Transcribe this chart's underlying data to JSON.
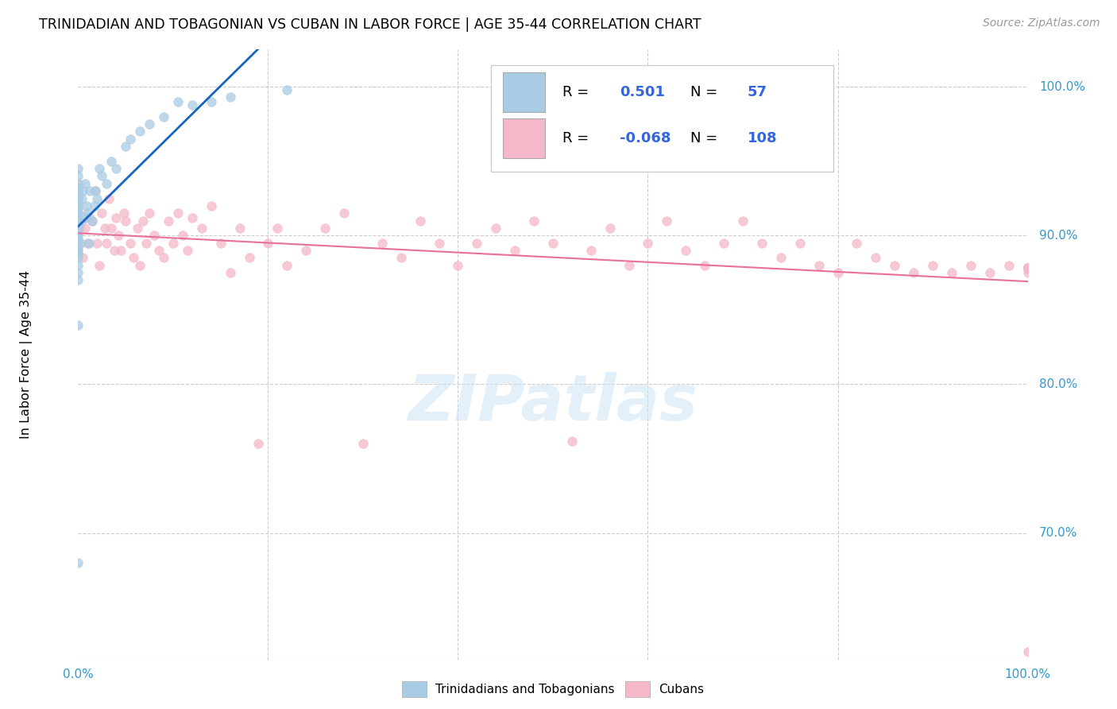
{
  "title": "TRINIDADIAN AND TOBAGONIAN VS CUBAN IN LABOR FORCE | AGE 35-44 CORRELATION CHART",
  "source_text": "Source: ZipAtlas.com",
  "ylabel": "In Labor Force | Age 35-44",
  "ytick_vals": [
    0.7,
    0.8,
    0.9,
    1.0
  ],
  "ytick_labels": [
    "70.0%",
    "80.0%",
    "90.0%",
    "100.0%"
  ],
  "xlim": [
    0.0,
    1.0
  ],
  "ylim": [
    0.615,
    1.025
  ],
  "watermark_text": "ZIPatlas",
  "color_blue": "#a8cce4",
  "color_pink": "#f4b8c8",
  "color_line_blue": "#1565c0",
  "color_line_pink": "#e8709a",
  "legend_label1": "R =   0.501   N =    57",
  "legend_label2": "R = -0.068   N = 108",
  "bottom_label1": "Trinidadians and Tobagonians",
  "bottom_label2": "Cubans",
  "trin_x": [
    0.0,
    0.0,
    0.0,
    0.0,
    0.0,
    0.0,
    0.0,
    0.0,
    0.0,
    0.0,
    0.0,
    0.0,
    0.0,
    0.0,
    0.0,
    0.0,
    0.0,
    0.0,
    0.0,
    0.0,
    0.0,
    0.0,
    0.0,
    0.0,
    0.0,
    0.0,
    0.0,
    0.0,
    0.002,
    0.003,
    0.004,
    0.005,
    0.007,
    0.008,
    0.009,
    0.01,
    0.011,
    0.012,
    0.015,
    0.017,
    0.018,
    0.02,
    0.022,
    0.025,
    0.03,
    0.035,
    0.04,
    0.05,
    0.055,
    0.065,
    0.075,
    0.09,
    0.105,
    0.12,
    0.14,
    0.16,
    0.22
  ],
  "trin_y": [
    0.68,
    0.84,
    0.87,
    0.875,
    0.88,
    0.885,
    0.888,
    0.89,
    0.892,
    0.895,
    0.898,
    0.9,
    0.902,
    0.905,
    0.908,
    0.91,
    0.912,
    0.915,
    0.918,
    0.92,
    0.922,
    0.925,
    0.928,
    0.93,
    0.932,
    0.935,
    0.94,
    0.945,
    0.895,
    0.91,
    0.925,
    0.93,
    0.935,
    0.912,
    0.92,
    0.915,
    0.895,
    0.93,
    0.91,
    0.92,
    0.93,
    0.925,
    0.945,
    0.94,
    0.935,
    0.95,
    0.945,
    0.96,
    0.965,
    0.97,
    0.975,
    0.98,
    0.99,
    0.988,
    0.99,
    0.993,
    0.998
  ],
  "cuban_x": [
    0.0,
    0.0,
    0.0,
    0.0,
    0.0,
    0.002,
    0.005,
    0.007,
    0.01,
    0.012,
    0.015,
    0.018,
    0.02,
    0.022,
    0.025,
    0.028,
    0.03,
    0.032,
    0.035,
    0.038,
    0.04,
    0.042,
    0.045,
    0.048,
    0.05,
    0.055,
    0.058,
    0.062,
    0.065,
    0.068,
    0.072,
    0.075,
    0.08,
    0.085,
    0.09,
    0.095,
    0.1,
    0.105,
    0.11,
    0.115,
    0.12,
    0.13,
    0.14,
    0.15,
    0.16,
    0.17,
    0.18,
    0.19,
    0.2,
    0.21,
    0.22,
    0.24,
    0.26,
    0.28,
    0.3,
    0.32,
    0.34,
    0.36,
    0.38,
    0.4,
    0.42,
    0.44,
    0.46,
    0.48,
    0.5,
    0.52,
    0.54,
    0.56,
    0.58,
    0.6,
    0.62,
    0.64,
    0.66,
    0.68,
    0.7,
    0.72,
    0.74,
    0.76,
    0.78,
    0.8,
    0.82,
    0.84,
    0.86,
    0.88,
    0.9,
    0.92,
    0.94,
    0.96,
    0.98,
    1.0,
    1.0,
    1.0,
    1.0,
    1.0,
    1.0,
    1.0,
    1.0,
    1.0,
    1.0,
    1.0,
    1.0,
    1.0,
    1.0,
    1.0,
    1.0,
    1.0,
    1.0,
    1.0
  ],
  "cuban_y": [
    0.91,
    0.925,
    0.89,
    0.915,
    0.935,
    0.905,
    0.885,
    0.905,
    0.895,
    0.912,
    0.91,
    0.93,
    0.895,
    0.88,
    0.915,
    0.905,
    0.895,
    0.925,
    0.905,
    0.89,
    0.912,
    0.9,
    0.89,
    0.915,
    0.91,
    0.895,
    0.885,
    0.905,
    0.88,
    0.91,
    0.895,
    0.915,
    0.9,
    0.89,
    0.885,
    0.91,
    0.895,
    0.915,
    0.9,
    0.89,
    0.912,
    0.905,
    0.92,
    0.895,
    0.875,
    0.905,
    0.885,
    0.76,
    0.895,
    0.905,
    0.88,
    0.89,
    0.905,
    0.915,
    0.76,
    0.895,
    0.885,
    0.91,
    0.895,
    0.88,
    0.895,
    0.905,
    0.89,
    0.91,
    0.895,
    0.762,
    0.89,
    0.905,
    0.88,
    0.895,
    0.91,
    0.89,
    0.88,
    0.895,
    0.91,
    0.895,
    0.885,
    0.895,
    0.88,
    0.875,
    0.895,
    0.885,
    0.88,
    0.875,
    0.88,
    0.875,
    0.88,
    0.875,
    0.88,
    0.875,
    0.878,
    0.878,
    0.878,
    0.878,
    0.878,
    0.878,
    0.878,
    0.878,
    0.878,
    0.878,
    0.878,
    0.878,
    0.878,
    0.878,
    0.878,
    0.878,
    0.878,
    0.62
  ]
}
